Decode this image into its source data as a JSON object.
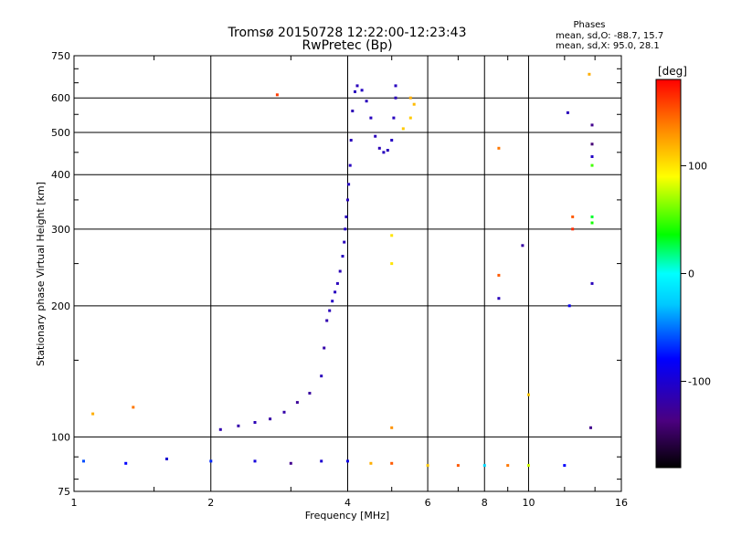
{
  "chart_data": {
    "type": "scatter",
    "title": "Tromsø 20150728 12:22:00-12:23:43",
    "subtitle": "RwPretec (Bp)",
    "stats": {
      "heading": "Phases",
      "line_o": "mean, sd,O: -88.7, 15.7",
      "line_x": "mean, sd,X:  95.0, 28.1"
    },
    "xlabel": "Frequency [MHz]",
    "ylabel": "Stationary phase Virtual Height [km]",
    "xscale": "log",
    "yscale": "log",
    "xlim": [
      1,
      16
    ],
    "ylim": [
      75,
      750
    ],
    "grid": true,
    "xticks": [
      {
        "value": 1,
        "label": "1"
      },
      {
        "value": 2,
        "label": "2"
      },
      {
        "value": 4,
        "label": "4"
      },
      {
        "value": 6,
        "label": "6"
      },
      {
        "value": 8,
        "label": "8"
      },
      {
        "value": 10,
        "label": "10"
      },
      {
        "value": 16,
        "label": "16"
      }
    ],
    "yticks": [
      {
        "value": 75,
        "label": "75"
      },
      {
        "value": 100,
        "label": "100"
      },
      {
        "value": 200,
        "label": "200"
      },
      {
        "value": 300,
        "label": "300"
      },
      {
        "value": 400,
        "label": "400"
      },
      {
        "value": 500,
        "label": "500"
      },
      {
        "value": 600,
        "label": "600"
      },
      {
        "value": 750,
        "label": "750"
      }
    ],
    "colorbar": {
      "label": "[deg]",
      "range": [
        -180,
        180
      ],
      "ticks": [
        {
          "value": 100,
          "label": "100"
        },
        {
          "value": 0,
          "label": "0"
        },
        {
          "value": -100,
          "label": "-100"
        }
      ]
    },
    "series": [
      {
        "points": [
          [
            3.65,
            195,
            -110
          ],
          [
            3.7,
            205,
            -105
          ],
          [
            3.75,
            215,
            -108
          ],
          [
            3.8,
            225,
            -110
          ],
          [
            3.85,
            240,
            -112
          ],
          [
            3.9,
            260,
            -108
          ],
          [
            3.93,
            280,
            -110
          ],
          [
            3.95,
            300,
            -105
          ],
          [
            3.97,
            320,
            -108
          ],
          [
            4.0,
            350,
            -110
          ],
          [
            4.02,
            380,
            -106
          ],
          [
            4.05,
            420,
            -108
          ],
          [
            4.07,
            480,
            -110
          ],
          [
            4.1,
            560,
            -112
          ],
          [
            4.15,
            620,
            -108
          ],
          [
            4.2,
            640,
            -110
          ],
          [
            4.3,
            625,
            -106
          ],
          [
            4.4,
            590,
            -110
          ],
          [
            4.5,
            540,
            -108
          ],
          [
            4.6,
            490,
            -110
          ],
          [
            4.7,
            460,
            -112
          ],
          [
            4.8,
            450,
            -108
          ],
          [
            4.9,
            455,
            -110
          ],
          [
            5.0,
            480,
            -106
          ],
          [
            5.05,
            540,
            -108
          ],
          [
            5.1,
            600,
            -110
          ],
          [
            5.1,
            640,
            -108
          ]
        ]
      },
      {
        "points": [
          [
            2.1,
            104,
            -115
          ],
          [
            2.3,
            106,
            -118
          ],
          [
            2.5,
            108,
            -112
          ],
          [
            2.7,
            110,
            -120
          ],
          [
            2.9,
            114,
            -118
          ],
          [
            3.1,
            120,
            -125
          ],
          [
            3.3,
            126,
            -122
          ],
          [
            3.5,
            138,
            -110
          ],
          [
            3.55,
            160,
            -118
          ],
          [
            3.6,
            185,
            -115
          ]
        ]
      },
      {
        "points": [
          [
            1.05,
            88,
            -60
          ],
          [
            1.3,
            87,
            -80
          ],
          [
            1.6,
            89,
            -100
          ],
          [
            2.0,
            88,
            -70
          ],
          [
            2.5,
            88,
            -95
          ],
          [
            3.0,
            87,
            -130
          ],
          [
            3.5,
            88,
            -100
          ],
          [
            4.0,
            88,
            -90
          ],
          [
            4.5,
            87,
            120
          ],
          [
            5.0,
            87,
            150
          ],
          [
            6.0,
            86,
            110
          ],
          [
            7.0,
            86,
            150
          ],
          [
            8.0,
            86,
            -20
          ],
          [
            9.0,
            86,
            140
          ],
          [
            10.0,
            86,
            80
          ],
          [
            12.0,
            86,
            -80
          ]
        ]
      },
      {
        "points": [
          [
            5.3,
            510,
            110
          ],
          [
            5.5,
            540,
            110
          ],
          [
            5.6,
            580,
            115
          ],
          [
            5.5,
            600,
            120
          ],
          [
            8.6,
            460,
            140
          ],
          [
            8.6,
            235,
            150
          ],
          [
            8.6,
            208,
            -110
          ],
          [
            9.7,
            275,
            -120
          ],
          [
            12.5,
            320,
            150
          ],
          [
            12.5,
            300,
            165
          ],
          [
            12.2,
            555,
            -110
          ],
          [
            12.3,
            200,
            -85
          ],
          [
            13.8,
            520,
            -130
          ],
          [
            13.8,
            470,
            -140
          ],
          [
            13.8,
            440,
            -105
          ],
          [
            13.8,
            420,
            50
          ],
          [
            13.8,
            320,
            30
          ],
          [
            13.8,
            310,
            40
          ],
          [
            13.7,
            105,
            -130
          ],
          [
            13.8,
            225,
            -110
          ],
          [
            13.6,
            680,
            120
          ],
          [
            2.8,
            610,
            160
          ],
          [
            1.1,
            113,
            120
          ],
          [
            1.35,
            117,
            140
          ],
          [
            10.0,
            125,
            110
          ],
          [
            5.0,
            290,
            100
          ],
          [
            5.0,
            250,
            100
          ],
          [
            5.0,
            105,
            130
          ]
        ]
      }
    ]
  }
}
